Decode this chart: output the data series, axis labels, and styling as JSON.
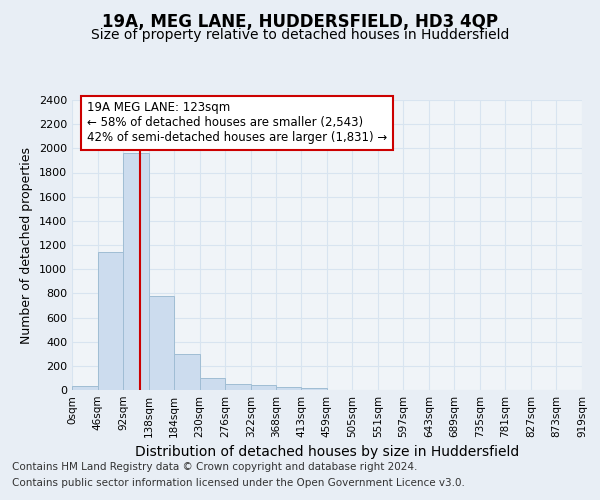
{
  "title": "19A, MEG LANE, HUDDERSFIELD, HD3 4QP",
  "subtitle": "Size of property relative to detached houses in Huddersfield",
  "xlabel": "Distribution of detached houses by size in Huddersfield",
  "ylabel": "Number of detached properties",
  "footnote1": "Contains HM Land Registry data © Crown copyright and database right 2024.",
  "footnote2": "Contains public sector information licensed under the Open Government Licence v3.0.",
  "bar_edges": [
    0,
    46,
    92,
    138,
    184,
    230,
    276,
    322,
    368,
    413,
    459,
    505,
    551,
    597,
    643,
    689,
    735,
    781,
    827,
    873,
    919
  ],
  "bar_heights": [
    35,
    1140,
    1960,
    775,
    300,
    100,
    48,
    38,
    25,
    15,
    0,
    0,
    0,
    0,
    0,
    0,
    0,
    0,
    0,
    0
  ],
  "bar_color": "#ccdcee",
  "bar_edge_color": "#a0bdd4",
  "tick_labels": [
    "0sqm",
    "46sqm",
    "92sqm",
    "138sqm",
    "184sqm",
    "230sqm",
    "276sqm",
    "322sqm",
    "368sqm",
    "413sqm",
    "459sqm",
    "505sqm",
    "551sqm",
    "597sqm",
    "643sqm",
    "689sqm",
    "735sqm",
    "781sqm",
    "827sqm",
    "873sqm",
    "919sqm"
  ],
  "ylim": [
    0,
    2400
  ],
  "yticks": [
    0,
    200,
    400,
    600,
    800,
    1000,
    1200,
    1400,
    1600,
    1800,
    2000,
    2200,
    2400
  ],
  "property_size": 123,
  "vline_color": "#cc0000",
  "annotation_title": "19A MEG LANE: 123sqm",
  "annotation_line1": "← 58% of detached houses are smaller (2,543)",
  "annotation_line2": "42% of semi-detached houses are larger (1,831) →",
  "bg_color": "#e8eef5",
  "plot_bg_color": "#f0f4f8",
  "grid_color": "#d8e4f0",
  "title_fontsize": 12,
  "subtitle_fontsize": 10,
  "xlabel_fontsize": 10,
  "ylabel_fontsize": 9,
  "tick_fontsize": 7.5,
  "footnote_fontsize": 7.5,
  "ann_fontsize": 8.5
}
